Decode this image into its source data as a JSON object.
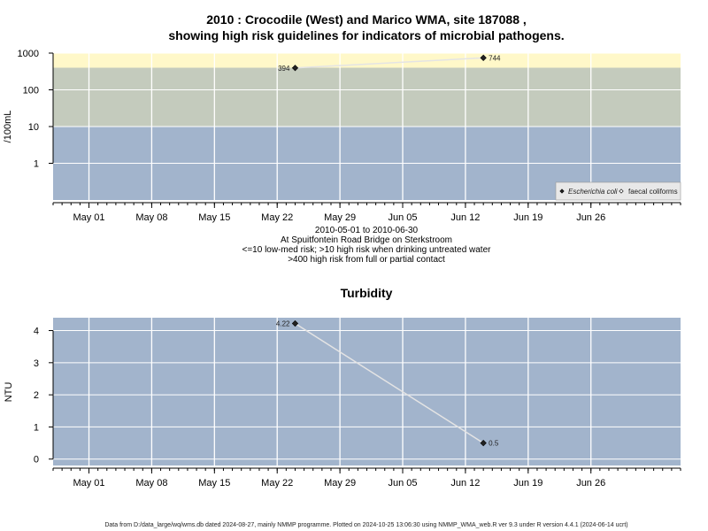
{
  "chart_data": [
    {
      "type": "scatter",
      "title_line1": "2010 : Crocodile (West) and Marico WMA, site 187088 ,",
      "title_line2": "showing high risk guidelines for indicators of microbial pathogens.",
      "ylabel": "/100mL",
      "yscale": "log",
      "ylim": [
        0.1,
        1000
      ],
      "x_range": [
        "2010-04-27",
        "2010-07-06"
      ],
      "x_tick_labels": [
        "May 01",
        "May 08",
        "May 15",
        "May 22",
        "May 29",
        "Jun 05",
        "Jun 12",
        "Jun 19",
        "Jun 26"
      ],
      "x_tick_dates": [
        "2010-05-01",
        "2010-05-08",
        "2010-05-15",
        "2010-05-22",
        "2010-05-29",
        "2010-06-05",
        "2010-06-12",
        "2010-06-19",
        "2010-06-26"
      ],
      "y_ticks": [
        1000,
        100,
        10,
        1
      ],
      "y_tick_labels": [
        "1000",
        "100",
        "10",
        "1"
      ],
      "bands": [
        {
          "from": 0.1,
          "to": 10,
          "color": "#a2b4cc"
        },
        {
          "from": 10,
          "to": 400,
          "color": "#c4cbbd"
        },
        {
          "from": 400,
          "to": 1000,
          "color": "#fff8c9"
        }
      ],
      "series": [
        {
          "name": "Escherichia coli",
          "marker": "filled-diamond",
          "points": [
            {
              "date": "2010-05-24",
              "value": 394,
              "label": "394"
            },
            {
              "date": "2010-06-14",
              "value": 744,
              "label": "744"
            }
          ]
        }
      ],
      "legend": {
        "position": "bottom-right",
        "entries": [
          "Escherichia coli",
          "faecal coliforms"
        ]
      },
      "caption": [
        "2010-05-01 to 2010-06-30",
        "At Spuitfontein Road Bridge on Sterkstroom",
        "<=10 low-med risk; >10 high risk when drinking untreated water",
        ">400 high risk from full or partial contact"
      ]
    },
    {
      "type": "line",
      "title": "Turbidity",
      "ylabel": "NTU",
      "ylim": [
        -0.2,
        4.4
      ],
      "x_range": [
        "2010-04-27",
        "2010-07-06"
      ],
      "x_tick_labels": [
        "May 01",
        "May 08",
        "May 15",
        "May 22",
        "May 29",
        "Jun 05",
        "Jun 12",
        "Jun 19",
        "Jun 26"
      ],
      "x_tick_dates": [
        "2010-05-01",
        "2010-05-08",
        "2010-05-15",
        "2010-05-22",
        "2010-05-29",
        "2010-06-05",
        "2010-06-12",
        "2010-06-19",
        "2010-06-26"
      ],
      "y_ticks": [
        0,
        1,
        2,
        3,
        4
      ],
      "y_tick_labels": [
        "0",
        "1",
        "2",
        "3",
        "4"
      ],
      "series": [
        {
          "points": [
            {
              "date": "2010-05-24",
              "value": 4.22,
              "label": "4.22"
            },
            {
              "date": "2010-06-14",
              "value": 0.5,
              "label": "0.5"
            }
          ]
        }
      ]
    }
  ],
  "footer": "Data from D:/data_large/wq/wms.db dated 2024-08-27, mainly NMMP programme. Plotted on 2024-10-25 13:06:30 using NMMP_WMA_web.R ver 9.3 under R version 4.4.1 (2024-06-14 ucrt)",
  "colors": {
    "panel_bg": "#a2b4cc",
    "grid": "#ffffff",
    "connector": "#e4e4e4",
    "marker": "#222222"
  }
}
